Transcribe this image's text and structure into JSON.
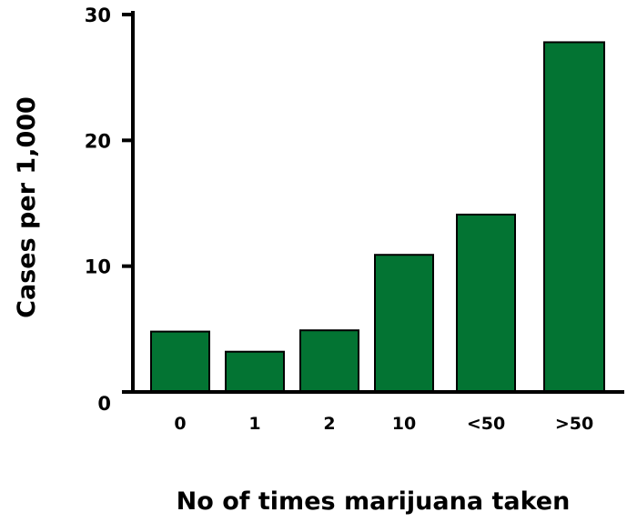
{
  "chart_data": {
    "type": "bar",
    "categories": [
      "0",
      "1",
      "2",
      "10",
      "<50",
      ">50"
    ],
    "values": [
      4.8,
      3.2,
      4.9,
      10.9,
      14.1,
      27.8
    ],
    "xlabel": "No of times marijuana taken",
    "ylabel": "Cases  per 1,000",
    "ylim": [
      0,
      30
    ],
    "yticks": [
      "0",
      "10",
      "20",
      "30"
    ],
    "grid": false,
    "bar_color": "#037433"
  }
}
